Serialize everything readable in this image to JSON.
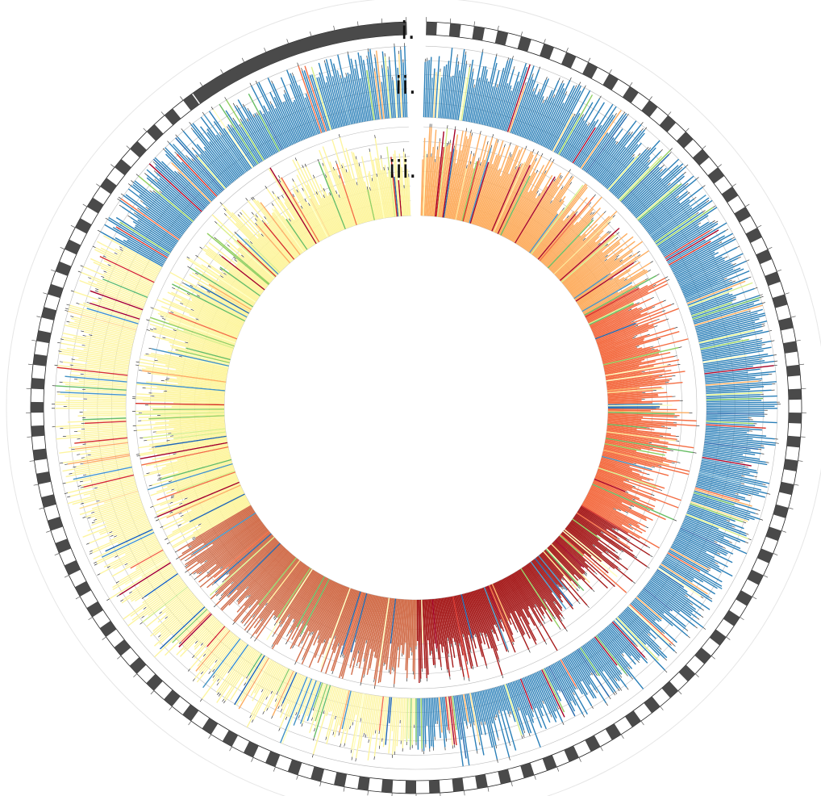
{
  "track_labels": {
    "i": "i.",
    "ii": "ii.",
    "iii": "iii."
  },
  "chart_data": {
    "type": "circular-histogram",
    "title": "",
    "tracks": [
      {
        "id": "i",
        "kind": "ideogram",
        "fill_color": "#4a4a4a",
        "segments": 200
      },
      {
        "id": "ii",
        "kind": "histogram",
        "windows": 1100,
        "dominant_colors_by_region": [
          "#2a7fb8",
          "#2a7fb8",
          "#2a7fb8",
          "#fdf5a0",
          "#fdf5a0",
          "#2a7fb8"
        ]
      },
      {
        "id": "iii",
        "kind": "histogram",
        "windows": 1100,
        "dominant_colors_by_region": [
          "#fdae61",
          "#f46d43",
          "#a61c1c",
          "#d16d4a",
          "#fdf5a0",
          "#fdf5a0"
        ]
      }
    ],
    "color_scale": [
      "#a50026",
      "#d73027",
      "#f46d43",
      "#fdae61",
      "#fee090",
      "#ffffbf",
      "#d9ef8b",
      "#91cf60",
      "#66bd63",
      "#4393c3",
      "#2166ac"
    ],
    "grid": true,
    "gap": "top"
  }
}
